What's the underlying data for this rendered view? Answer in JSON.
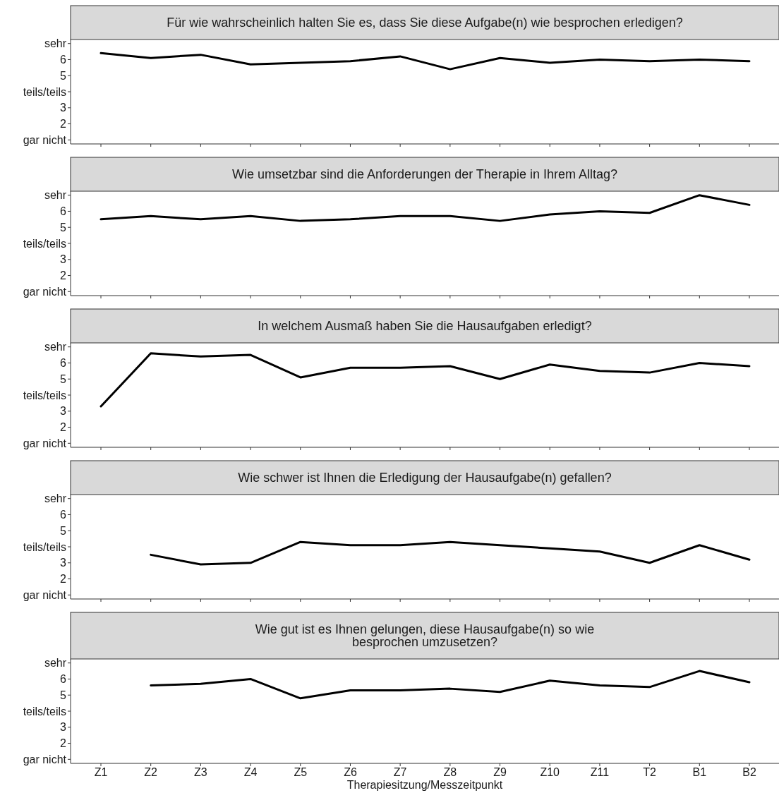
{
  "chart_data": [
    {
      "type": "line",
      "title": "Für wie wahrscheinlich halten Sie es, dass Sie diese Aufgabe(n) wie besprochen erledigen?",
      "categories": [
        null,
        null,
        null,
        null,
        null,
        null,
        null,
        null,
        null,
        null,
        null,
        null,
        null,
        null
      ],
      "series": [
        {
          "color": "#000000",
          "values": [
            6.4,
            6.1,
            6.3,
            5.7,
            5.8,
            5.9,
            6.2,
            5.4,
            6.1,
            5.8,
            6.0,
            5.9,
            6.0,
            5.9
          ]
        }
      ],
      "ylim": [
        0.75,
        7.25
      ],
      "yticks": [
        {
          "value": 1,
          "label": "gar nicht"
        },
        2,
        3,
        {
          "value": 4,
          "label": "teils/teils"
        },
        5,
        6,
        {
          "value": 7,
          "label": "sehr"
        }
      ],
      "tick_labels": "y"
    },
    {
      "type": "line",
      "title": "Wie umsetzbar sind die Anforderungen der Therapie in Ihrem Alltag?",
      "categories": [
        null,
        null,
        null,
        null,
        null,
        null,
        null,
        null,
        null,
        null,
        null,
        null,
        null,
        null
      ],
      "series": [
        {
          "color": "#000000",
          "values": [
            5.5,
            5.7,
            5.5,
            5.7,
            5.4,
            5.5,
            5.7,
            5.7,
            5.4,
            5.8,
            6.0,
            5.9,
            7.0,
            6.4
          ]
        }
      ],
      "ylim": [
        0.75,
        7.25
      ],
      "yticks": [
        {
          "value": 1,
          "label": "gar nicht"
        },
        2,
        3,
        {
          "value": 4,
          "label": "teils/teils"
        },
        5,
        6,
        {
          "value": 7,
          "label": "sehr"
        }
      ],
      "tick_labels": "y"
    },
    {
      "type": "line",
      "title": "In welchem Ausmaß haben Sie die Hausaufgaben erledigt?",
      "categories": [
        null,
        null,
        null,
        null,
        null,
        null,
        null,
        null,
        null,
        null,
        null,
        null,
        null,
        null
      ],
      "series": [
        {
          "color": "#000000",
          "values": [
            3.3,
            6.6,
            6.4,
            6.5,
            5.1,
            5.7,
            5.7,
            5.8,
            5.0,
            5.9,
            5.5,
            5.4,
            6.0,
            5.8
          ]
        }
      ],
      "ylim": [
        0.75,
        7.25
      ],
      "yticks": [
        {
          "value": 1,
          "label": "gar nicht"
        },
        2,
        3,
        {
          "value": 4,
          "label": "teils/teils"
        },
        5,
        6,
        {
          "value": 7,
          "label": "sehr"
        }
      ],
      "tick_labels": "y"
    },
    {
      "type": "line",
      "title": "Wie schwer ist Ihnen die Erledigung der Hausaufgabe(n) gefallen?",
      "categories": [
        null,
        null,
        null,
        null,
        null,
        null,
        null,
        null,
        null,
        null,
        null,
        null,
        null,
        null
      ],
      "series": [
        {
          "color": "#000000",
          "values": [
            null,
            3.5,
            2.9,
            3.0,
            4.3,
            4.1,
            4.1,
            4.3,
            4.1,
            3.9,
            3.7,
            3.0,
            4.1,
            3.2
          ]
        }
      ],
      "ylim": [
        0.75,
        7.25
      ],
      "yticks": [
        {
          "value": 1,
          "label": "gar nicht"
        },
        2,
        3,
        {
          "value": 4,
          "label": "teils/teils"
        },
        5,
        6,
        {
          "value": 7,
          "label": "sehr"
        }
      ],
      "tick_labels": "y"
    },
    {
      "type": "line",
      "title": "Wie gut ist es Ihnen gelungen, diese Hausaufgabe(n) so wie\nbesprochen umzusetzen?",
      "xlabel": "Therapiesitzung/Messzeitpunkt",
      "categories": [
        "Z1",
        "Z2",
        "Z3",
        "Z4",
        "Z5",
        "Z6",
        "Z7",
        "Z8",
        "Z9",
        "Z10",
        "Z11",
        "T2",
        "B1",
        "B2"
      ],
      "series": [
        {
          "color": "#000000",
          "values": [
            null,
            5.6,
            5.7,
            6.0,
            4.8,
            5.3,
            5.3,
            5.4,
            5.2,
            5.9,
            5.6,
            5.5,
            6.5,
            5.8
          ]
        }
      ],
      "ylim": [
        0.75,
        7.25
      ],
      "yticks": [
        {
          "value": 1,
          "label": "gar nicht"
        },
        2,
        3,
        {
          "value": 4,
          "label": "teils/teils"
        },
        5,
        6,
        {
          "value": 7,
          "label": "sehr"
        }
      ]
    }
  ]
}
